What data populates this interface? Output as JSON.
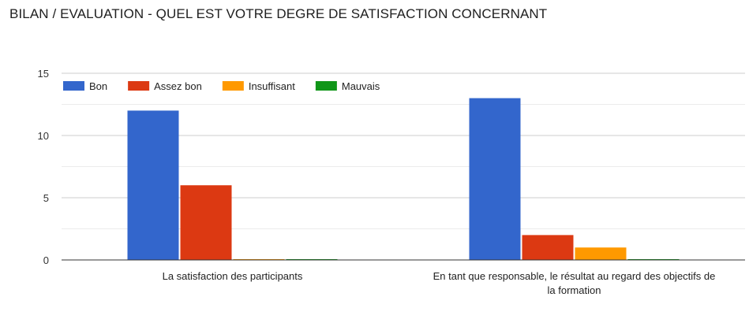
{
  "chart_data": {
    "type": "bar",
    "title": "BILAN / EVALUATION - QUEL EST VOTRE DEGRE DE SATISFACTION CONCERNANT",
    "categories": [
      [
        "La satisfaction des participants"
      ],
      [
        "En tant que responsable, le résultat au regard des objectifs de",
        "la formation"
      ]
    ],
    "series": [
      {
        "name": "Bon",
        "values": [
          12,
          13
        ],
        "color": "#3366cc"
      },
      {
        "name": "Assez bon",
        "values": [
          6,
          2
        ],
        "color": "#dc3912"
      },
      {
        "name": "Insuffisant",
        "values": [
          0,
          1
        ],
        "color": "#ff9900"
      },
      {
        "name": "Mauvais",
        "values": [
          0,
          0
        ],
        "color": "#109618"
      }
    ],
    "yticks": [
      "0",
      "5",
      "10",
      "15"
    ],
    "ylim": [
      0,
      15
    ],
    "grid": true,
    "legend_position": "top-left"
  }
}
